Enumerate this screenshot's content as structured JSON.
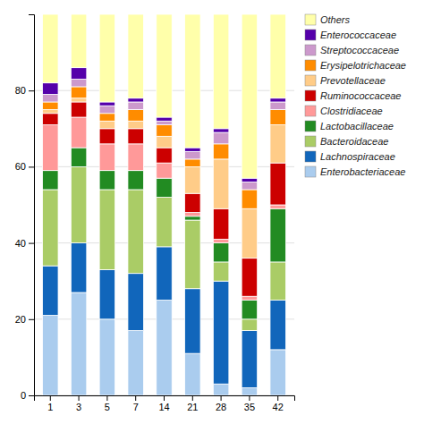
{
  "chart_data": {
    "type": "bar",
    "stacked": true,
    "grid": true,
    "legend": "right",
    "categories": [
      "1",
      "3",
      "5",
      "7",
      "14",
      "21",
      "28",
      "35",
      "42"
    ],
    "series": [
      {
        "name": "Enterobacteriaceae",
        "color": "#AACCEE",
        "values": [
          21,
          27,
          20,
          17,
          25,
          11,
          3,
          2,
          12
        ]
      },
      {
        "name": "Lachnospiraceae",
        "color": "#1166BB",
        "values": [
          13,
          13,
          13,
          15,
          14,
          17,
          27,
          15,
          13
        ]
      },
      {
        "name": "Bacteroidaceae",
        "color": "#AACC66",
        "values": [
          20,
          20,
          21,
          22,
          13,
          18,
          5,
          3,
          10
        ]
      },
      {
        "name": "Lactobacillaceae",
        "color": "#228B22",
        "values": [
          5,
          5,
          5,
          5,
          5,
          1,
          5,
          5,
          14
        ]
      },
      {
        "name": "Clostridiaceae",
        "color": "#FF9999",
        "values": [
          12,
          8,
          7,
          7,
          4,
          1,
          1,
          1,
          1
        ]
      },
      {
        "name": "Ruminococcaceae",
        "color": "#CC0000",
        "values": [
          3,
          4,
          4,
          4,
          4,
          5,
          8,
          10,
          11
        ]
      },
      {
        "name": "Prevotellaceae",
        "color": "#FFCC88",
        "values": [
          1,
          1,
          2,
          2,
          3,
          7,
          13,
          13,
          10
        ]
      },
      {
        "name": "Erysipelotrichaceae",
        "color": "#FF8C00",
        "values": [
          2,
          3,
          2,
          3,
          3,
          2,
          4,
          5,
          4
        ]
      },
      {
        "name": "Streptococcaceae",
        "color": "#CC99CC",
        "values": [
          2,
          2,
          2,
          2,
          1,
          2,
          3,
          2,
          2
        ]
      },
      {
        "name": "Enterococcaceae",
        "color": "#5500AA",
        "values": [
          3,
          3,
          1,
          1,
          1,
          1,
          1,
          1,
          1
        ]
      },
      {
        "name": "Others",
        "color": "#FFFFAA",
        "values": [
          18,
          14,
          23,
          22,
          27,
          35,
          30,
          43,
          22
        ]
      }
    ],
    "ylim": [
      0,
      100
    ],
    "yticks": [
      0,
      20,
      40,
      60,
      80
    ]
  }
}
